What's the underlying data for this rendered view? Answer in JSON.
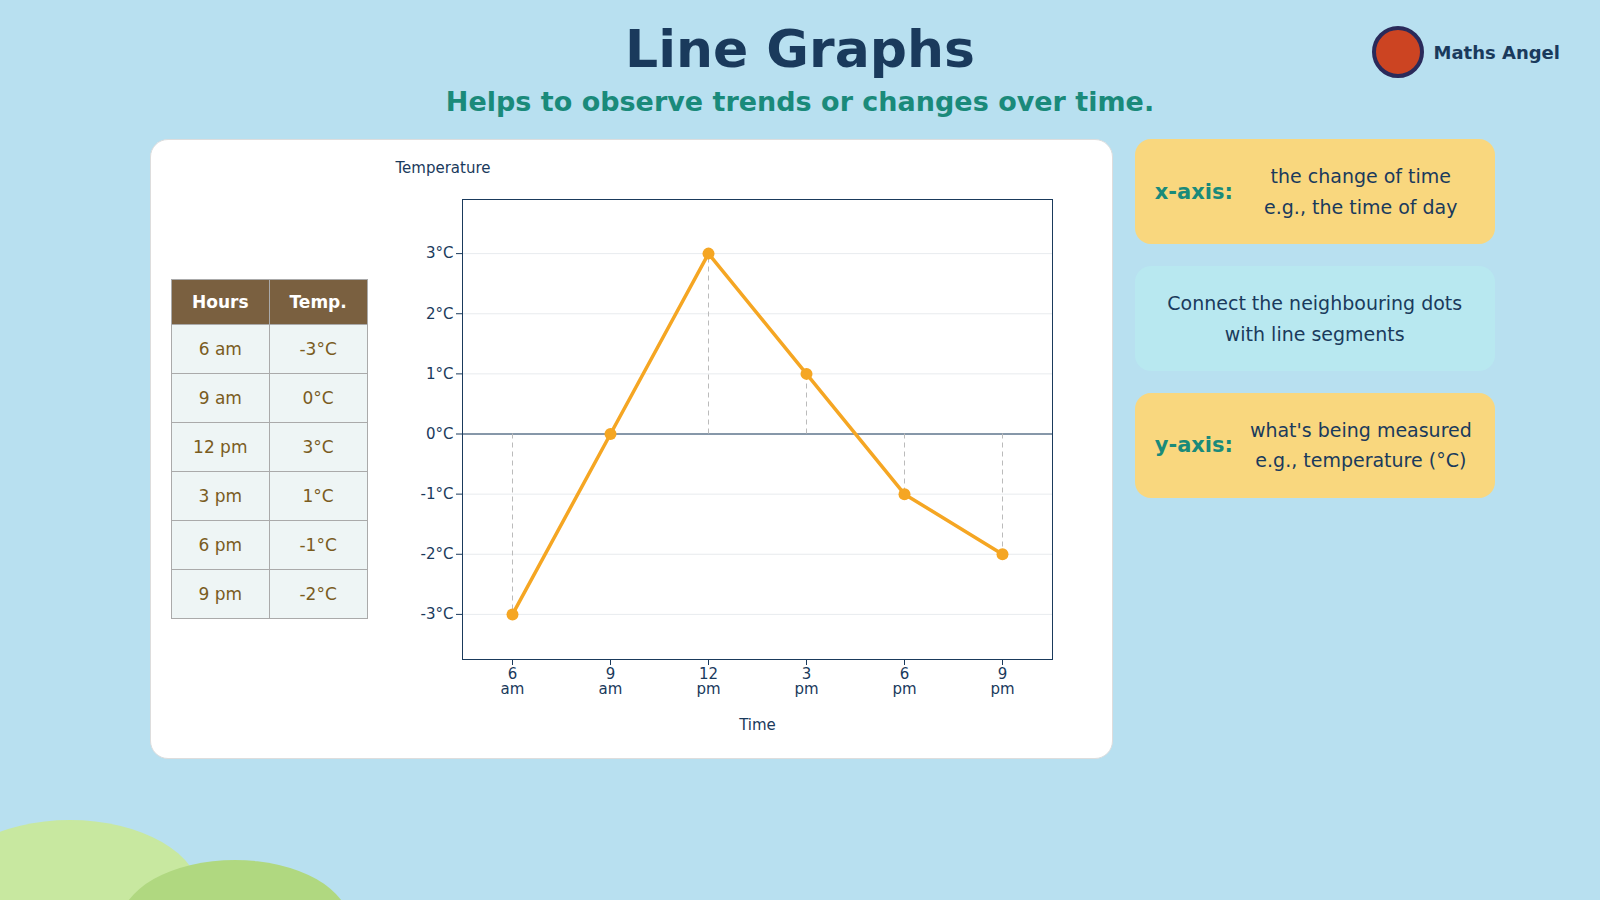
{
  "chart_data": {
    "type": "line",
    "title": "Line Graphs",
    "subtitle": "Helps to observe trends or changes over time.",
    "caption": "Maths Angel",
    "categories": [
      "6\nam",
      "9\nam",
      "12\npm",
      "3\npm",
      "6\npm",
      "9\npm"
    ],
    "values": [
      -3,
      0,
      3,
      1,
      -1,
      -2
    ],
    "color": "#f5a623",
    "marker": "circle",
    "xlabel": "Time",
    "ylabel": "Temperature",
    "ylim": [
      -3.75,
      3.9
    ],
    "yticks": [
      {
        "value": -3,
        "label": "-3°C"
      },
      {
        "value": -2,
        "label": "-2°C"
      },
      {
        "value": -1,
        "label": "-1°C"
      },
      {
        "value": 0,
        "label": "0°C"
      },
      {
        "value": 1,
        "label": "1°C"
      },
      {
        "value": 2,
        "label": "2°C"
      },
      {
        "value": 3,
        "label": "3°C"
      }
    ],
    "grid": true,
    "table": {
      "columns": [
        "Hours",
        "Temp."
      ],
      "rows": [
        [
          "6 am",
          "-3°C"
        ],
        [
          "9 am",
          "0°C"
        ],
        [
          "12 pm",
          "3°C"
        ],
        [
          "3 pm",
          "1°C"
        ],
        [
          "6 pm",
          "-1°C"
        ],
        [
          "9 pm",
          "-2°C"
        ]
      ]
    },
    "annotations": [
      {
        "label": "x-axis:",
        "text": [
          "the change of time",
          "e.g., the time of day"
        ],
        "color": "#f9d77e"
      },
      {
        "text": [
          "Connect the neighbouring dots",
          "with line segments"
        ],
        "color": "#b8e8f0"
      },
      {
        "label": "y-axis:",
        "text": [
          "what's being measured",
          "e.g., temperature (°C)"
        ],
        "color": "#f9d77e"
      }
    ]
  }
}
